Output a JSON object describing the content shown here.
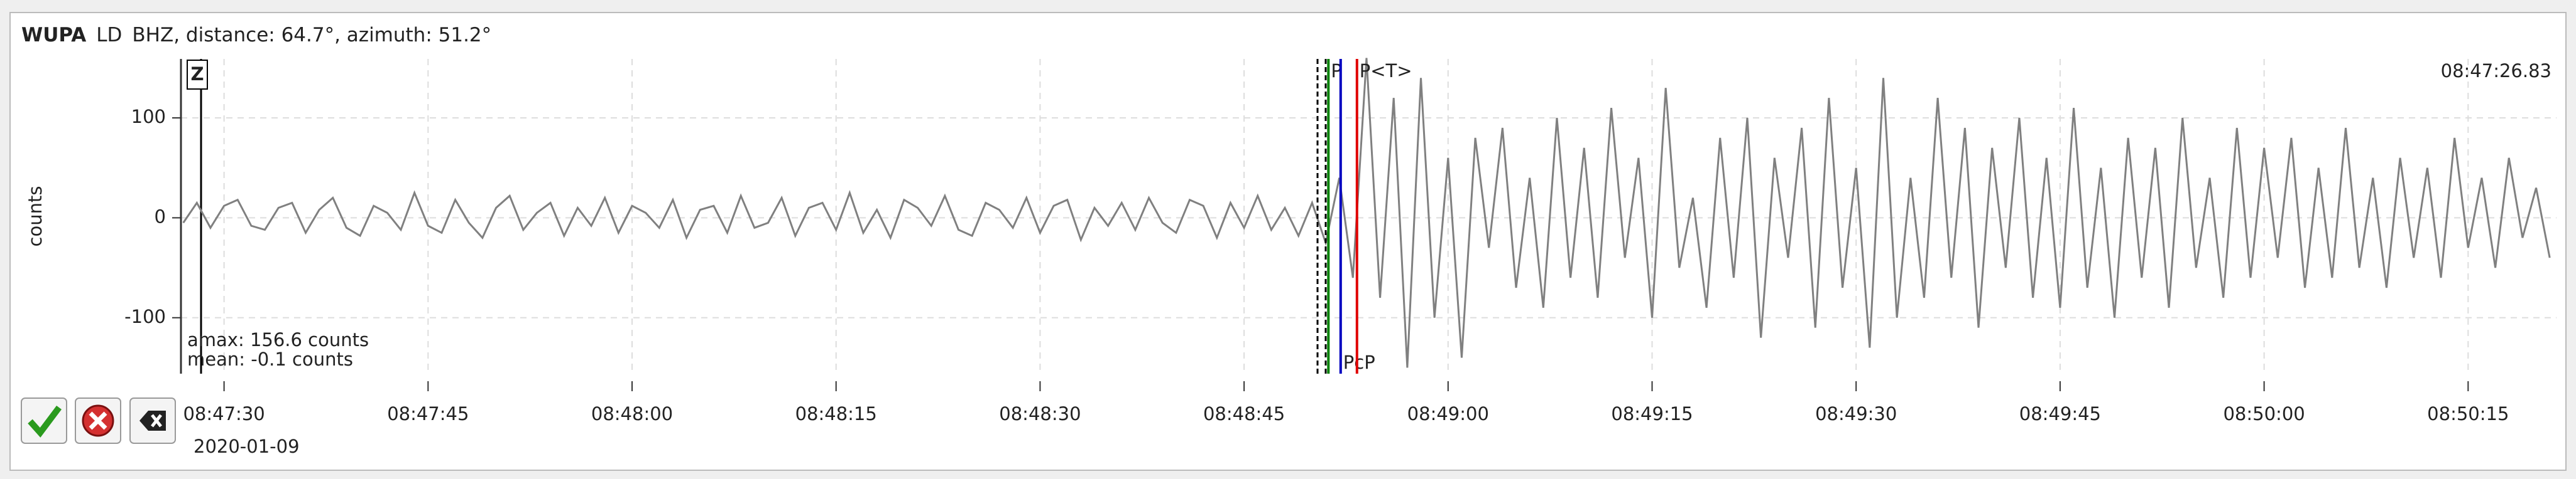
{
  "header": {
    "station": "WUPA",
    "network": "LD",
    "channel": "BHZ, distance: 64.7°, azimuth: 51.2°"
  },
  "chart_data": {
    "type": "line",
    "y_label": "counts",
    "component": "Z",
    "time_label": "08:47:26.83",
    "date": "2020-01-09",
    "amax": "amax: 156.6 counts",
    "mean": "mean: -0.1 counts",
    "xlim": [
      26.83,
      201.5
    ],
    "ylim": [
      -156,
      159
    ],
    "yticks": [
      -100,
      0,
      100
    ],
    "xticks": [
      {
        "value": 30,
        "label": "08:47:30"
      },
      {
        "value": 45,
        "label": "08:47:45"
      },
      {
        "value": 60,
        "label": "08:48:00"
      },
      {
        "value": 75,
        "label": "08:48:15"
      },
      {
        "value": 90,
        "label": "08:48:30"
      },
      {
        "value": 105,
        "label": "08:48:45"
      },
      {
        "value": 120,
        "label": "08:49:00"
      },
      {
        "value": 135,
        "label": "08:49:15"
      },
      {
        "value": 150,
        "label": "08:49:30"
      },
      {
        "value": 165,
        "label": "08:49:45"
      },
      {
        "value": 180,
        "label": "08:50:00"
      },
      {
        "value": 195,
        "label": "08:50:15"
      }
    ],
    "grid": true,
    "x": [
      27,
      28,
      29,
      30,
      31,
      32,
      33,
      34,
      35,
      36,
      37,
      38,
      39,
      40,
      41,
      42,
      43,
      44,
      45,
      46,
      47,
      48,
      49,
      50,
      51,
      52,
      53,
      54,
      55,
      56,
      57,
      58,
      59,
      60,
      61,
      62,
      63,
      64,
      65,
      66,
      67,
      68,
      69,
      70,
      71,
      72,
      73,
      74,
      75,
      76,
      77,
      78,
      79,
      80,
      81,
      82,
      83,
      84,
      85,
      86,
      87,
      88,
      89,
      90,
      91,
      92,
      93,
      94,
      95,
      96,
      97,
      98,
      99,
      100,
      101,
      102,
      103,
      104,
      105,
      106,
      107,
      108,
      109,
      110,
      111,
      112,
      113,
      114,
      115,
      116,
      117,
      118,
      119,
      120,
      121,
      122,
      123,
      124,
      125,
      126,
      127,
      128,
      129,
      130,
      131,
      132,
      133,
      134,
      135,
      136,
      137,
      138,
      139,
      140,
      141,
      142,
      143,
      144,
      145,
      146,
      147,
      148,
      149,
      150,
      151,
      152,
      153,
      154,
      155,
      156,
      157,
      158,
      159,
      160,
      161,
      162,
      163,
      164,
      165,
      166,
      167,
      168,
      169,
      170,
      171,
      172,
      173,
      174,
      175,
      176,
      177,
      178,
      179,
      180,
      181,
      182,
      183,
      184,
      185,
      186,
      187,
      188,
      189,
      190,
      191,
      192,
      193,
      194,
      195,
      196,
      197,
      198,
      199,
      200,
      201
    ],
    "series": [
      {
        "color": "#808080",
        "values": [
          -5,
          15,
          -10,
          12,
          18,
          -8,
          -12,
          10,
          15,
          -15,
          8,
          20,
          -10,
          -18,
          12,
          5,
          -12,
          25,
          -8,
          -15,
          18,
          -5,
          -20,
          10,
          22,
          -12,
          5,
          15,
          -18,
          10,
          -8,
          20,
          -15,
          12,
          5,
          -10,
          18,
          -20,
          8,
          12,
          -15,
          22,
          -10,
          -5,
          20,
          -18,
          10,
          15,
          -12,
          25,
          -15,
          8,
          -20,
          18,
          10,
          -8,
          22,
          -12,
          -18,
          15,
          8,
          -10,
          20,
          -15,
          12,
          18,
          -22,
          10,
          -8,
          15,
          -12,
          20,
          -5,
          -15,
          18,
          12,
          -20,
          15,
          -10,
          22,
          -12,
          10,
          -18,
          15,
          -25,
          40,
          -60,
          160,
          -80,
          120,
          -150,
          140,
          -100,
          60,
          -140,
          80,
          -30,
          90,
          -70,
          40,
          -90,
          100,
          -60,
          70,
          -80,
          110,
          -40,
          60,
          -100,
          130,
          -50,
          20,
          -90,
          80,
          -60,
          100,
          -120,
          60,
          -40,
          90,
          -110,
          120,
          -70,
          50,
          -130,
          140,
          -100,
          40,
          -80,
          120,
          -60,
          90,
          -110,
          70,
          -50,
          100,
          -80,
          60,
          -90,
          110,
          -70,
          50,
          -100,
          80,
          -60,
          70,
          -90,
          100,
          -50,
          40,
          -80,
          90,
          -60,
          70,
          -40,
          80,
          -70,
          50,
          -60,
          90,
          -50,
          40,
          -70,
          60,
          -40,
          50,
          -60,
          80,
          -30,
          40,
          -50,
          60,
          -20,
          30,
          -40
        ]
      }
    ],
    "markers": [
      110.4,
      111.0
    ],
    "picks": [
      {
        "label": "P",
        "x": 111.2,
        "color": "#008000"
      },
      {
        "label": "PcP",
        "x": 112.1,
        "color": "#0000c0"
      },
      {
        "label": "P<T>",
        "x": 113.3,
        "color": "#e00000"
      }
    ]
  }
}
